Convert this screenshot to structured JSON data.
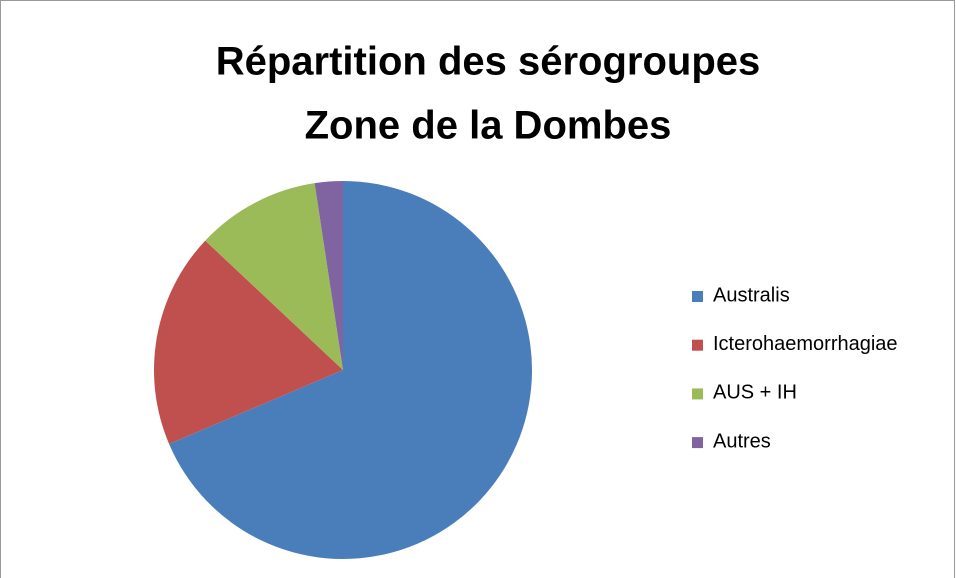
{
  "chart_data": {
    "type": "pie",
    "title": [
      "Répartition des sérogroupes",
      "Zone de la Dombes"
    ],
    "categories": [
      "Australis",
      "Icterohaemorrhagiae",
      "AUS + IH",
      "Autres"
    ],
    "values": [
      68.6,
      18.4,
      10.6,
      2.4
    ],
    "colors": [
      "#4a7ebb",
      "#c0504d",
      "#9bbb59",
      "#8064a2"
    ],
    "legend": "right"
  }
}
